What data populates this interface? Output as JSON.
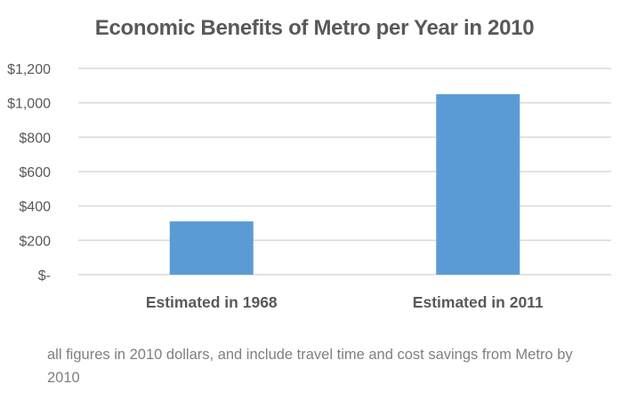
{
  "chart_data": {
    "type": "bar",
    "title": "Economic Benefits of Metro per Year in 2010",
    "categories": [
      "Estimated in 1968",
      "Estimated in 2011"
    ],
    "values": [
      310,
      1050
    ],
    "xlabel": "",
    "ylabel": "",
    "ylim": [
      0,
      1200
    ],
    "yticks": [
      0,
      200,
      400,
      600,
      800,
      1000,
      1200
    ],
    "ytick_labels": [
      "$-",
      "$200",
      "$400",
      "$600",
      "$800",
      "$1,000",
      "$1,200"
    ],
    "grid": true,
    "legend": "none",
    "colors": {
      "bar": "#5b9bd5",
      "grid": "#d9d9d9",
      "text": "#595959"
    }
  },
  "note": "all figures in 2010 dollars, and include travel time and cost savings from Metro by 2010"
}
